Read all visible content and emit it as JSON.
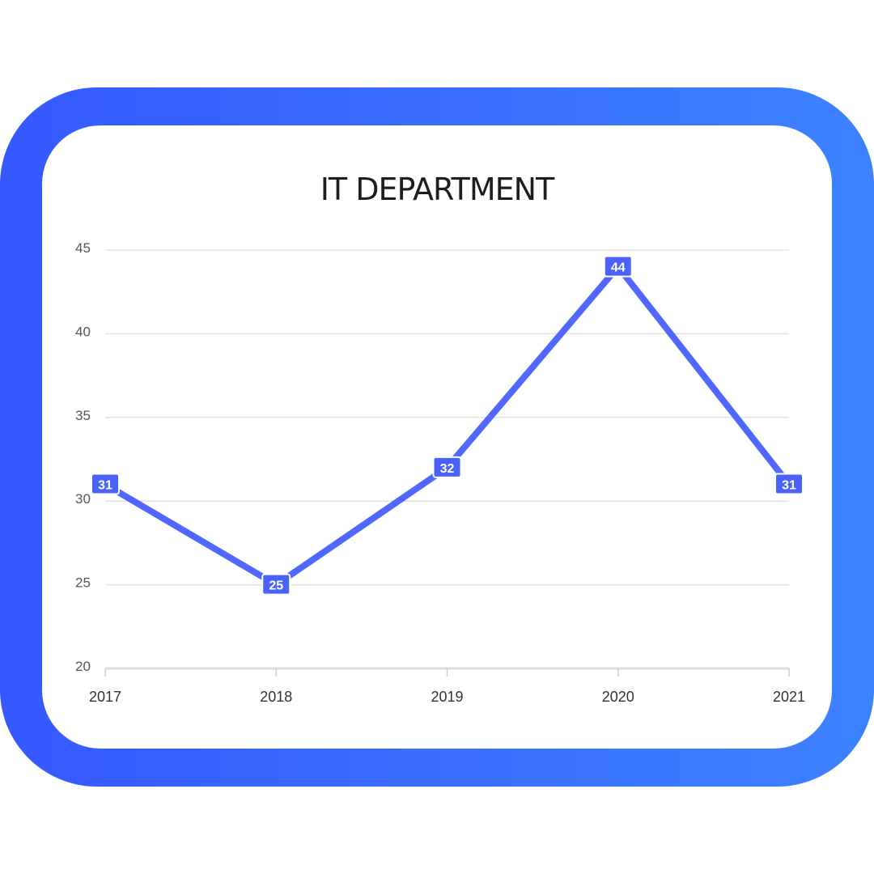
{
  "chart_data": {
    "type": "line",
    "title": "IT DEPARTMENT",
    "xlabel": "",
    "ylabel": "",
    "categories": [
      "2017",
      "2018",
      "2019",
      "2020",
      "2021"
    ],
    "series": [
      {
        "values": [
          31,
          25,
          32,
          44,
          31
        ]
      }
    ],
    "ylim": [
      20,
      45
    ],
    "yticks": [
      20,
      25,
      30,
      35,
      40,
      45
    ],
    "grid": true,
    "data_labels": true
  },
  "colors": {
    "line": "#5068ff",
    "label_bg": "#4a62fa",
    "frame_left": "#3558ff",
    "frame_right": "#3c82ff",
    "grid": "#e2e2e2"
  }
}
